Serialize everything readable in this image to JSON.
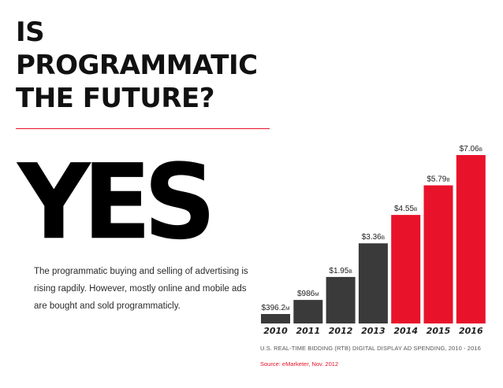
{
  "page": {
    "title_lines": [
      "IS",
      "PROGRAMMATIC",
      "THE FUTURE?"
    ],
    "answer": "YES",
    "description": "The programmatic buying and selling of advertising is rising rapdily. However, mostly online and mobile ads are bought and sold programmaticly.",
    "footnote": "U.S. REAL-TIME BIDDING (RTB) DIGITAL DISPLAY AD SPENDING, 2010 - 2016",
    "source": "Source: eMarketer, Nov. 2012"
  },
  "colors": {
    "accent": "#e8132a",
    "dark_bar": "#3a3a3a",
    "text": "#111111"
  },
  "chart_data": {
    "type": "bar",
    "categories": [
      "2010",
      "2011",
      "2012",
      "2013",
      "2014",
      "2015",
      "2016"
    ],
    "values": [
      0.3962,
      0.986,
      1.95,
      3.36,
      4.55,
      5.79,
      7.06
    ],
    "value_labels": [
      {
        "main": "$396.2",
        "unit": "M"
      },
      {
        "main": "$986",
        "unit": "M"
      },
      {
        "main": "$1.95",
        "unit": "B"
      },
      {
        "main": "$3.36",
        "unit": "B"
      },
      {
        "main": "$4.55",
        "unit": "B"
      },
      {
        "main": "$5.79",
        "unit": "B"
      },
      {
        "main": "$7.06",
        "unit": "B"
      }
    ],
    "bar_colors": [
      "#3a3a3a",
      "#3a3a3a",
      "#3a3a3a",
      "#3a3a3a",
      "#e8132a",
      "#e8132a",
      "#e8132a"
    ],
    "unit": "USD billions",
    "ylim": [
      0,
      7.06
    ],
    "title": "",
    "xlabel": "",
    "ylabel": ""
  }
}
